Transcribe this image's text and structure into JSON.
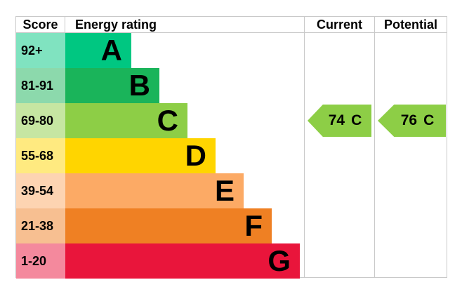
{
  "chart_data": {
    "type": "bar",
    "title": "",
    "headers": {
      "score": "Score",
      "energy_rating": "Energy rating",
      "current": "Current",
      "potential": "Potential"
    },
    "bands": [
      {
        "letter": "A",
        "score_range": "92+",
        "color": "#00c781",
        "tint": "#80e3c0"
      },
      {
        "letter": "B",
        "score_range": "81-91",
        "color": "#1ab45a",
        "tint": "#8cd9ac"
      },
      {
        "letter": "C",
        "score_range": "69-80",
        "color": "#8dce46",
        "tint": "#c6e6a2"
      },
      {
        "letter": "D",
        "score_range": "55-68",
        "color": "#ffd500",
        "tint": "#ffea80"
      },
      {
        "letter": "E",
        "score_range": "39-54",
        "color": "#fcaa65",
        "tint": "#fdd4b2"
      },
      {
        "letter": "F",
        "score_range": "21-38",
        "color": "#ef8023",
        "tint": "#f7bf91"
      },
      {
        "letter": "G",
        "score_range": "1-20",
        "color": "#e9153b",
        "tint": "#f4899d"
      }
    ],
    "current": {
      "value": "74",
      "letter": "C",
      "color": "#8dce46"
    },
    "potential": {
      "value": "76",
      "letter": "C",
      "color": "#8dce46"
    }
  }
}
